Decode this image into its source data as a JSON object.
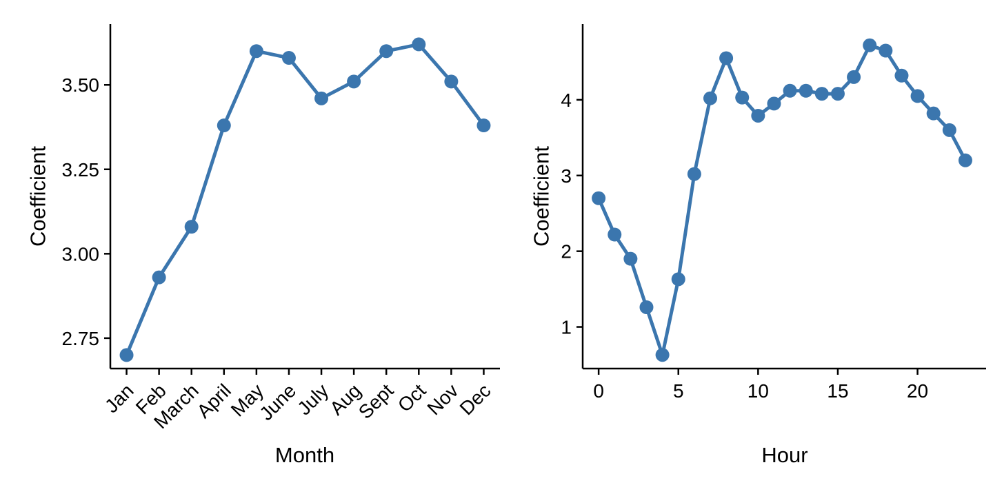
{
  "figure": {
    "background": "#ffffff",
    "accent_color": "#3B76AE",
    "axis_color": "#000000",
    "text_color": "#000000"
  },
  "chart_data": [
    {
      "type": "line",
      "title": "",
      "xlabel": "Month",
      "ylabel": "Coefficient",
      "categories": [
        "Jan",
        "Feb",
        "March",
        "April",
        "May",
        "June",
        "July",
        "Aug",
        "Sept",
        "Oct",
        "Nov",
        "Dec"
      ],
      "values": [
        2.7,
        2.93,
        3.08,
        3.38,
        3.6,
        3.58,
        3.46,
        3.51,
        3.6,
        3.62,
        3.51,
        3.38
      ],
      "yticks": [
        2.75,
        3.0,
        3.25,
        3.5
      ],
      "ytick_labels": [
        "2.75",
        "3.00",
        "3.25",
        "3.50"
      ],
      "ylim": [
        2.66,
        3.68
      ],
      "x_tick_rotation": 45,
      "grid": false,
      "legend": "none",
      "marker": "circle"
    },
    {
      "type": "line",
      "title": "",
      "xlabel": "Hour",
      "ylabel": "Coefficient",
      "x": [
        0,
        1,
        2,
        3,
        4,
        5,
        6,
        7,
        8,
        9,
        10,
        11,
        12,
        13,
        14,
        15,
        16,
        17,
        18,
        19,
        20,
        21,
        22,
        23
      ],
      "values": [
        2.7,
        2.22,
        1.9,
        1.26,
        0.63,
        1.63,
        3.02,
        4.02,
        4.55,
        4.03,
        3.79,
        3.95,
        4.12,
        4.12,
        4.08,
        4.08,
        4.3,
        4.72,
        4.65,
        4.32,
        4.05,
        3.82,
        3.6,
        3.2
      ],
      "xticks": [
        0,
        5,
        10,
        15,
        20
      ],
      "xtick_labels": [
        "0",
        "5",
        "10",
        "15",
        "20"
      ],
      "xlim": [
        -1.0,
        24.3
      ],
      "yticks": [
        1,
        2,
        3,
        4
      ],
      "ytick_labels": [
        "1",
        "2",
        "3",
        "4"
      ],
      "ylim": [
        0.45,
        5.0
      ],
      "x_tick_rotation": 0,
      "grid": false,
      "legend": "none",
      "marker": "circle"
    }
  ]
}
